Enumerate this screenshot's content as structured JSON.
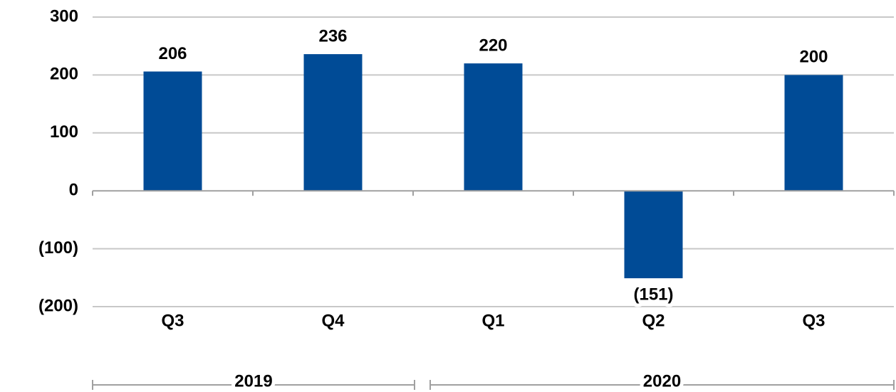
{
  "chart_data": {
    "type": "bar",
    "categories": [
      "Q3",
      "Q4",
      "Q1",
      "Q2",
      "Q3"
    ],
    "x_groups": [
      {
        "label": "2019",
        "count": 2
      },
      {
        "label": "2020",
        "count": 3
      }
    ],
    "values": [
      206,
      236,
      220,
      -151,
      200
    ],
    "value_labels": [
      "206",
      "236",
      "220",
      "(151)",
      "200"
    ],
    "color": "#004b96",
    "ylim": [
      -200,
      300
    ],
    "yticks": [
      {
        "value": -200,
        "label": "(200)"
      },
      {
        "value": -100,
        "label": "(100)"
      },
      0,
      100,
      200,
      300
    ],
    "grid": true
  }
}
